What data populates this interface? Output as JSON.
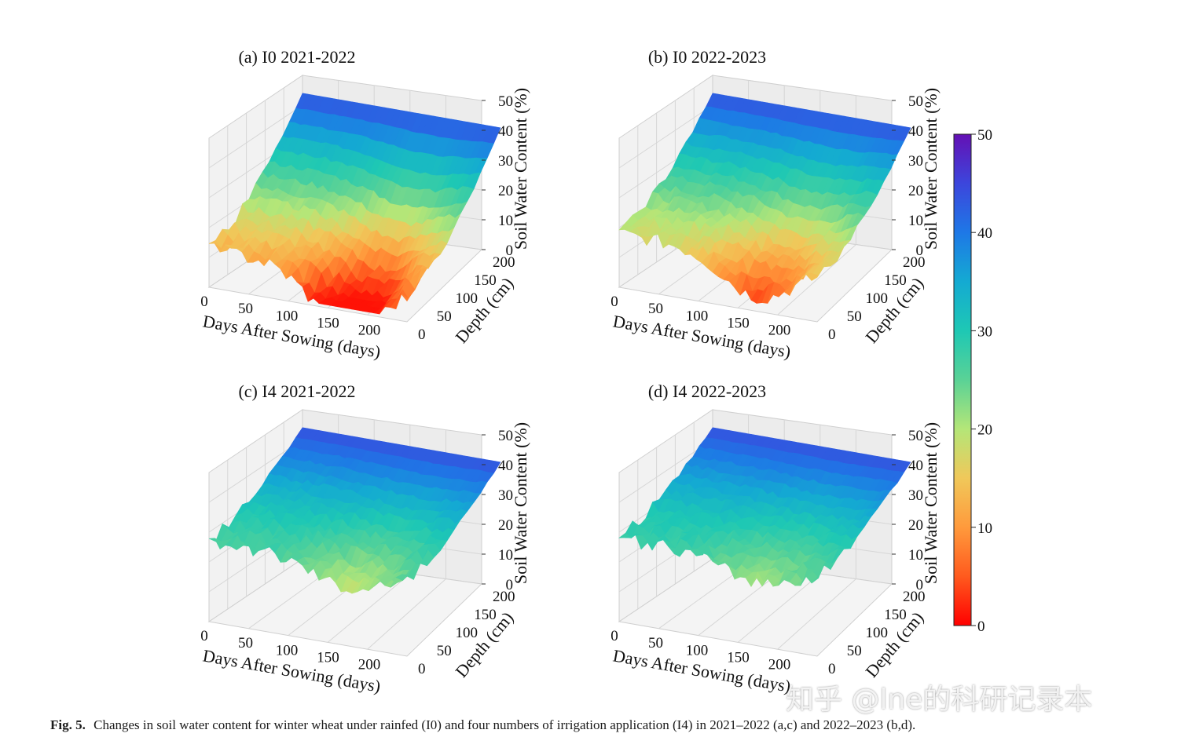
{
  "chart_data": {
    "type": "surface3d",
    "panels": [
      {
        "title": "(a)  I0   2021-2022",
        "base": 13,
        "surge": 1.2,
        "valley": 0.85,
        "seed": 3
      },
      {
        "title": "(b)  I0   2022-2023",
        "base": 18,
        "surge": 1.0,
        "valley": 0.6,
        "seed": 7
      },
      {
        "title": "(c)  I4   2021-2022",
        "base": 27,
        "surge": 0.6,
        "valley": 0.35,
        "seed": 11
      },
      {
        "title": "(d)  I4   2022-2023",
        "base": 28,
        "surge": 0.5,
        "valley": 0.3,
        "seed": 19
      }
    ],
    "x_axis": {
      "label": "Days After Sowing (days)",
      "ticks": [
        "0",
        "50",
        "100",
        "150",
        "200"
      ],
      "range": [
        0,
        240
      ]
    },
    "y_axis": {
      "label": "Depth (cm)",
      "ticks": [
        "0",
        "50",
        "100",
        "150",
        "200"
      ],
      "range": [
        0,
        200
      ]
    },
    "z_axis": {
      "label": "Soil Water Content (%)",
      "ticks": [
        "0",
        "10",
        "20",
        "30",
        "40",
        "50"
      ],
      "range": [
        0,
        50
      ]
    },
    "colorbar": {
      "ticks": [
        "0",
        "10",
        "20",
        "30",
        "40",
        "50"
      ],
      "range": [
        0,
        50
      ],
      "colormap": "rainbow_r"
    }
  },
  "caption": {
    "label": "Fig. 5.",
    "text": "Changes in soil water content for winter wheat under rainfed (I0) and four numbers of irrigation application (I4) in 2021–2022 (a,c) and 2022–2023 (b,d)."
  },
  "watermark": "知乎 @lne的科研记录本"
}
